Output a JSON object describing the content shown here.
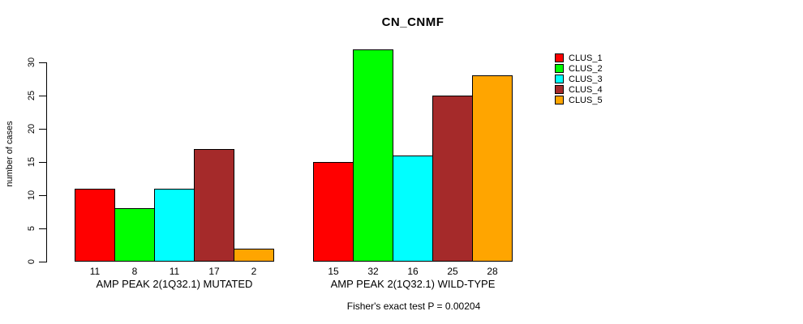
{
  "title": "CN_CNMF",
  "chart_data": {
    "type": "bar",
    "title": "CN_CNMF",
    "ylabel": "number of cases",
    "xlabel": "",
    "ylim": [
      0,
      30
    ],
    "yticks": [
      0,
      5,
      10,
      15,
      20,
      25,
      30
    ],
    "grid": false,
    "legend_position": "right",
    "categories": [
      "AMP PEAK 2(1Q32.1) MUTATED",
      "AMP PEAK 2(1Q32.1) WILD-TYPE"
    ],
    "series": [
      {
        "name": "CLUS_1",
        "color": "#FF0000",
        "values": [
          11,
          15
        ]
      },
      {
        "name": "CLUS_2",
        "color": "#00FF00",
        "values": [
          8,
          32
        ]
      },
      {
        "name": "CLUS_3",
        "color": "#00FFFF",
        "values": [
          11,
          16
        ]
      },
      {
        "name": "CLUS_4",
        "color": "#A52A2A",
        "values": [
          17,
          25
        ]
      },
      {
        "name": "CLUS_5",
        "color": "#FFA500",
        "values": [
          2,
          28
        ]
      }
    ],
    "bar_value_labels": [
      [
        11,
        8,
        11,
        17,
        2
      ],
      [
        15,
        32,
        16,
        25,
        28
      ]
    ],
    "annotation": "Fisher's exact test P = 0.00204"
  }
}
